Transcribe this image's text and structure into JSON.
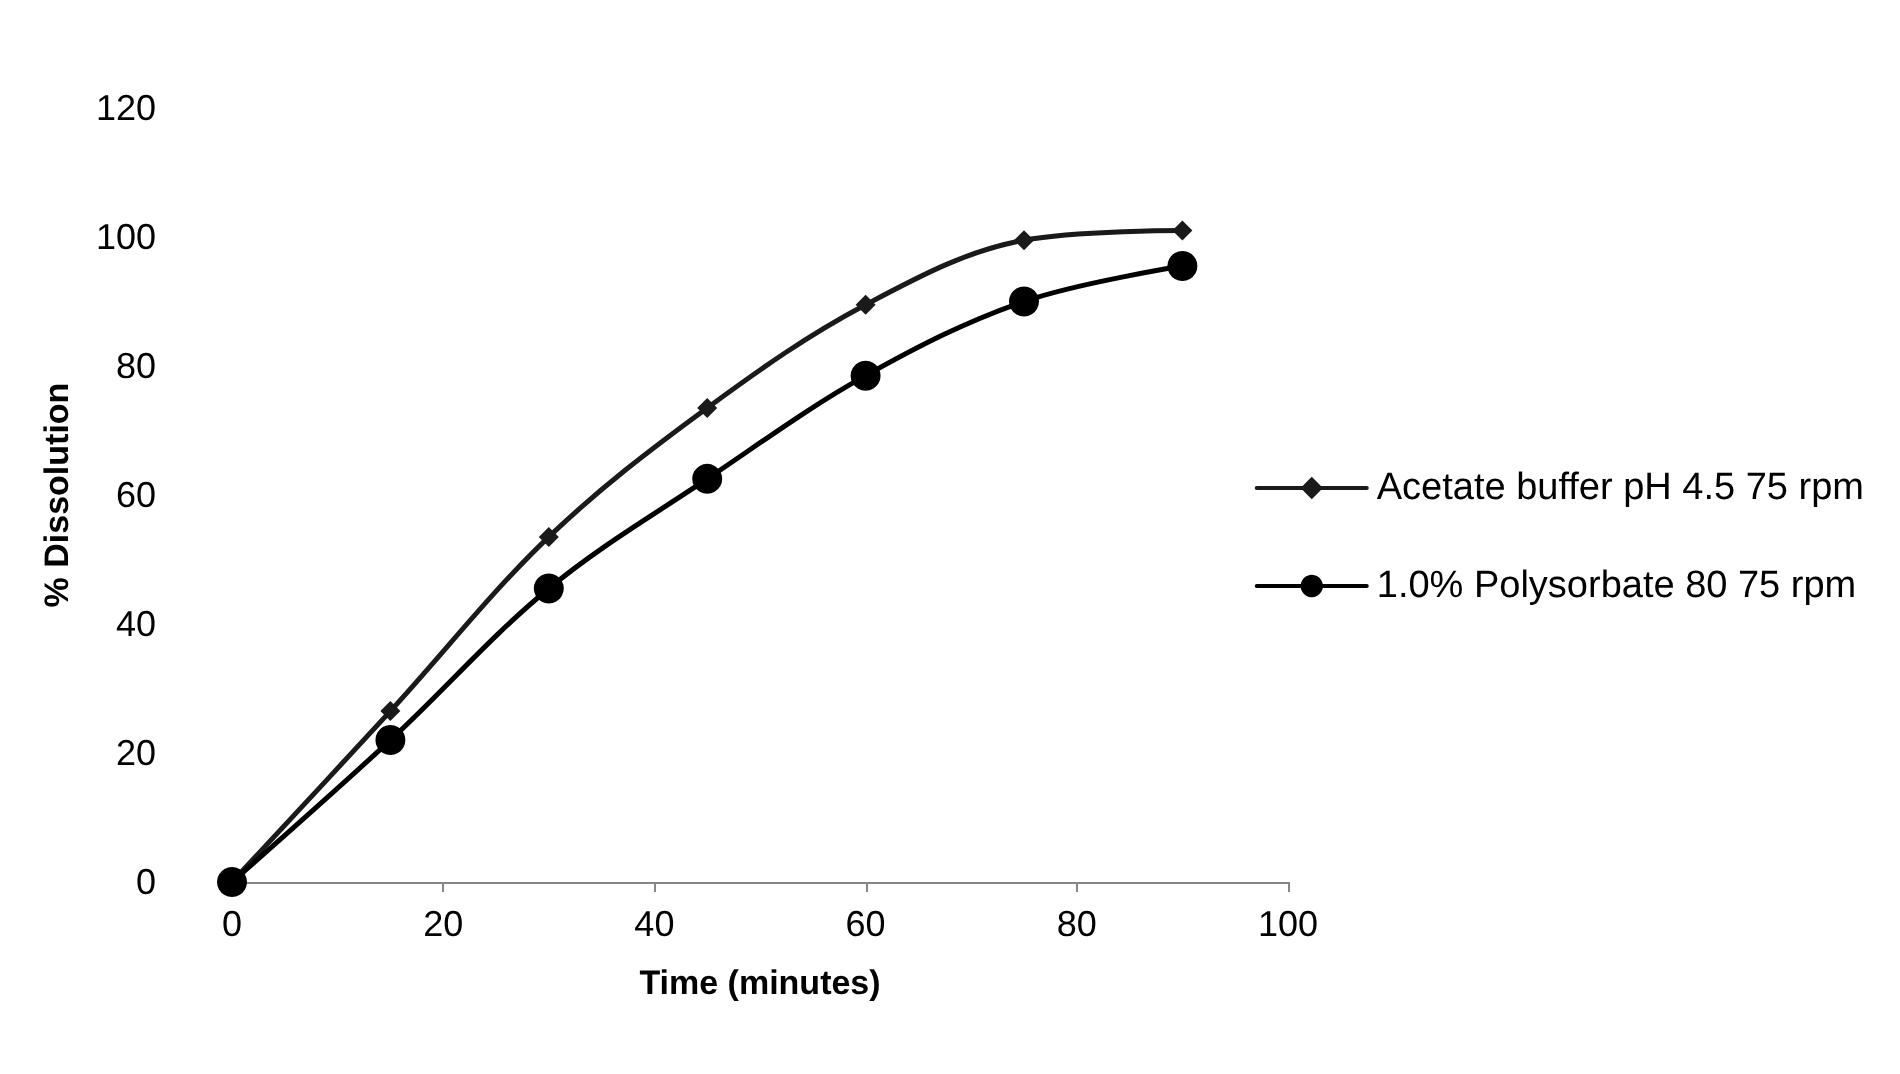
{
  "chart_data": {
    "type": "line",
    "xlabel": "Time (minutes)",
    "ylabel": "% Dissolution",
    "x": [
      0,
      15,
      30,
      45,
      60,
      75,
      90
    ],
    "series": [
      {
        "name": "Acetate buffer pH 4.5 75 rpm",
        "color": "#1a1a1a",
        "marker": "diamond",
        "values": [
          0,
          26.5,
          53.5,
          73.5,
          89.5,
          99.5,
          101
        ]
      },
      {
        "name": "1.0% Polysorbate 80 75 rpm",
        "color": "#000000",
        "marker": "circle",
        "values": [
          0,
          22,
          45.5,
          62.5,
          78.5,
          90,
          95.5
        ]
      }
    ],
    "xlim": [
      0,
      100
    ],
    "xticks": [
      0,
      20,
      40,
      60,
      80,
      100
    ],
    "ylim": [
      0,
      120
    ],
    "yticks": [
      0,
      20,
      40,
      60,
      80,
      100,
      120
    ],
    "grid": false,
    "legend": "right",
    "line_style": "solid"
  }
}
